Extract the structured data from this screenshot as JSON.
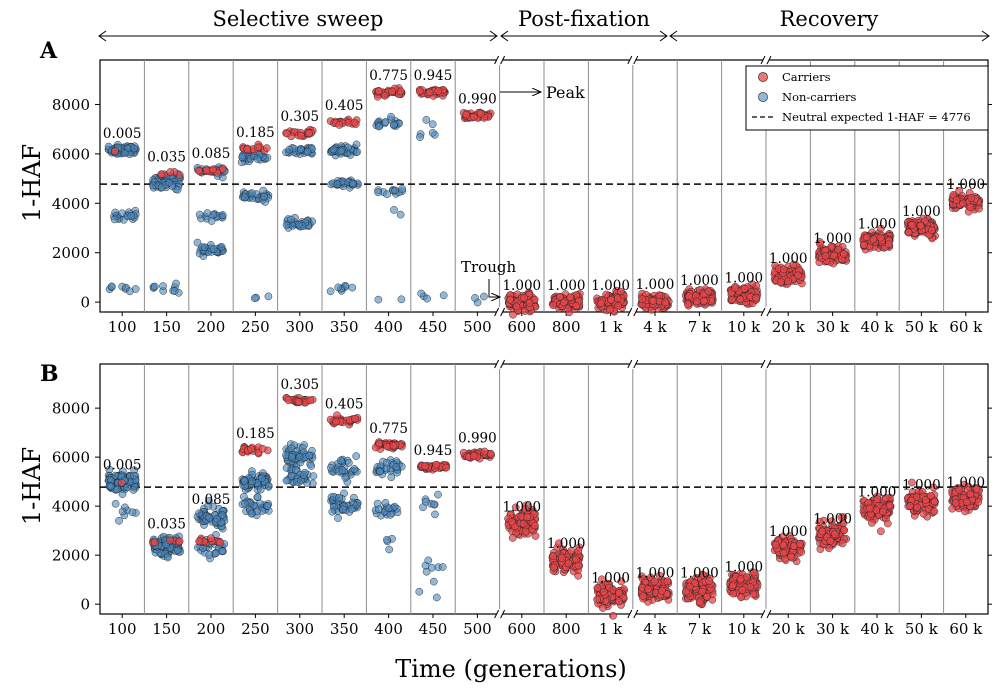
{
  "phases": [
    "Selective sweep",
    "Post-fixation",
    "Recovery"
  ],
  "panel_a": {
    "label": "A",
    "annotations": {
      "peak": "Peak",
      "trough": "Trough"
    }
  },
  "panel_b": {
    "label": "B"
  },
  "ylabel": "1-HAF",
  "xlabel": "Time (generations)",
  "legend": {
    "carriers": "Carriers",
    "noncarriers": "Non-carriers",
    "neutral": "Neutral expected 1-HAF = 4776"
  },
  "colors": {
    "carrier": "#e8474b",
    "noncarrier": "#4a89c0",
    "edge": "#222222",
    "separator": "#8c8c8c"
  },
  "chart_data": [
    {
      "type": "scatter",
      "panel": "A",
      "ylabel": "1-HAF",
      "xlabel": "Time (generations)",
      "ylim": [
        -400,
        9800
      ],
      "yticks": [
        0,
        2000,
        4000,
        6000,
        8000
      ],
      "neutral_expected": 4776,
      "categories": [
        "100",
        "150",
        "200",
        "250",
        "300",
        "350",
        "400",
        "450",
        "500",
        "600",
        "800",
        "1 k",
        "4 k",
        "7 k",
        "10 k",
        "20 k",
        "30 k",
        "40 k",
        "50 k",
        "60 k"
      ],
      "frequencies": [
        "0.005",
        "0.035",
        "0.085",
        "0.185",
        "0.305",
        "0.405",
        "0.775",
        "0.945",
        "0.990",
        "1.000",
        "1.000",
        "1.000",
        "1.000",
        "1.000",
        "1.000",
        "1.000",
        "1.000",
        "1.000",
        "1.000",
        "1.000"
      ],
      "series": [
        {
          "name": "Carriers",
          "clusters": [
            [
              [
                6050,
                1
              ]
            ],
            [
              [
                5200,
                6
              ]
            ],
            [
              [
                5350,
                12
              ]
            ],
            [
              [
                6200,
                14
              ]
            ],
            [
              [
                6850,
                20
              ]
            ],
            [
              [
                7300,
                18
              ]
            ],
            [
              [
                8500,
                35
              ]
            ],
            [
              [
                8500,
                40
              ]
            ],
            [
              [
                7550,
                45
              ]
            ],
            [
              [
                0,
                100
              ]
            ],
            [
              [
                0,
                100
              ]
            ],
            [
              [
                0,
                100
              ]
            ],
            [
              [
                50,
                100
              ]
            ],
            [
              [
                200,
                100
              ]
            ],
            [
              [
                300,
                100
              ]
            ],
            [
              [
                1100,
                100
              ]
            ],
            [
              [
                1900,
                100
              ]
            ],
            [
              [
                2500,
                100
              ]
            ],
            [
              [
                3000,
                100
              ]
            ],
            [
              [
                4100,
                100
              ]
            ]
          ]
        },
        {
          "name": "Non-carriers",
          "clusters": [
            [
              [
                6150,
                70
              ],
              [
                3500,
                20
              ],
              [
                550,
                8
              ]
            ],
            [
              [
                5000,
                40
              ],
              [
                4700,
                20
              ],
              [
                550,
                10
              ]
            ],
            [
              [
                5300,
                25
              ],
              [
                3450,
                15
              ],
              [
                2100,
                30
              ]
            ],
            [
              [
                5900,
                30
              ],
              [
                4300,
                30
              ],
              [
                120,
                3
              ]
            ],
            [
              [
                6150,
                30
              ],
              [
                3200,
                30
              ]
            ],
            [
              [
                6150,
                40
              ],
              [
                4800,
                30
              ],
              [
                550,
                8
              ]
            ],
            [
              [
                7250,
                18
              ],
              [
                4500,
                12
              ],
              [
                3600,
                2
              ],
              [
                80,
                2
              ]
            ],
            [
              [
                7300,
                2
              ],
              [
                6800,
                4
              ],
              [
                180,
                4
              ]
            ],
            [
              [
                120,
                3
              ]
            ],
            [],
            [],
            [],
            [],
            [],
            [],
            [],
            [],
            [],
            [],
            []
          ]
        }
      ]
    },
    {
      "type": "scatter",
      "panel": "B",
      "ylabel": "1-HAF",
      "xlabel": "Time (generations)",
      "ylim": [
        -400,
        9800
      ],
      "yticks": [
        0,
        2000,
        4000,
        6000,
        8000
      ],
      "neutral_expected": 4776,
      "categories": [
        "100",
        "150",
        "200",
        "250",
        "300",
        "350",
        "400",
        "450",
        "500",
        "600",
        "800",
        "1 k",
        "4 k",
        "7 k",
        "10 k",
        "20 k",
        "30 k",
        "40 k",
        "50 k",
        "60 k"
      ],
      "frequencies": [
        "0.005",
        "0.035",
        "0.085",
        "0.185",
        "0.305",
        "0.405",
        "0.775",
        "0.945",
        "0.990",
        "1.000",
        "1.000",
        "1.000",
        "1.000",
        "1.000",
        "1.000",
        "1.000",
        "1.000",
        "1.000",
        "1.000",
        "1.000"
      ],
      "series": [
        {
          "name": "Carriers",
          "clusters": [
            [
              [
                5000,
                1
              ]
            ],
            [
              [
                2600,
                6
              ]
            ],
            [
              [
                2600,
                12
              ]
            ],
            [
              [
                6300,
                20
              ]
            ],
            [
              [
                8300,
                25
              ]
            ],
            [
              [
                7500,
                30
              ]
            ],
            [
              [
                6500,
                40
              ]
            ],
            [
              [
                5600,
                45
              ]
            ],
            [
              [
                6100,
                50
              ]
            ],
            [
              [
                3300,
                100
              ]
            ],
            [
              [
                1800,
                100
              ]
            ],
            [
              [
                400,
                100
              ]
            ],
            [
              [
                600,
                100
              ]
            ],
            [
              [
                600,
                100
              ]
            ],
            [
              [
                850,
                100
              ]
            ],
            [
              [
                2300,
                100
              ]
            ],
            [
              [
                2800,
                100
              ]
            ],
            [
              [
                3900,
                100
              ]
            ],
            [
              [
                4200,
                100
              ]
            ],
            [
              [
                4300,
                100
              ]
            ]
          ]
        },
        {
          "name": "Non-carriers",
          "clusters": [
            [
              [
                5000,
                100
              ],
              [
                3800,
                8
              ]
            ],
            [
              [
                2400,
                100
              ]
            ],
            [
              [
                3600,
                60
              ],
              [
                2400,
                30
              ]
            ],
            [
              [
                5000,
                60
              ],
              [
                4000,
                30
              ]
            ],
            [
              [
                6000,
                50
              ],
              [
                5200,
                30
              ]
            ],
            [
              [
                5500,
                30
              ],
              [
                4000,
                40
              ]
            ],
            [
              [
                5500,
                30
              ],
              [
                3800,
                20
              ],
              [
                2500,
                4
              ]
            ],
            [
              [
                4000,
                8
              ],
              [
                1500,
                6
              ],
              [
                500,
                3
              ]
            ],
            [],
            [],
            [],
            [],
            [],
            [],
            [],
            [],
            [],
            [],
            [],
            []
          ]
        }
      ]
    }
  ]
}
